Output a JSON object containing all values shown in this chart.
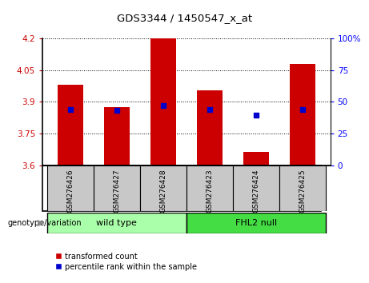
{
  "title": "GDS3344 / 1450547_x_at",
  "samples": [
    "GSM276426",
    "GSM276427",
    "GSM276428",
    "GSM276423",
    "GSM276424",
    "GSM276425"
  ],
  "bar_values": [
    3.98,
    3.875,
    4.2,
    3.955,
    3.665,
    4.08
  ],
  "percentile_values": [
    3.865,
    3.862,
    3.882,
    3.865,
    3.836,
    3.865
  ],
  "ylim_left": [
    3.6,
    4.2
  ],
  "ylim_right": [
    0,
    100
  ],
  "yticks_left": [
    3.6,
    3.75,
    3.9,
    4.05,
    4.2
  ],
  "ytick_labels_left": [
    "3.6",
    "3.75",
    "3.9",
    "4.05",
    "4.2"
  ],
  "yticks_right": [
    0,
    25,
    50,
    75,
    100
  ],
  "ytick_labels_right": [
    "0",
    "25",
    "50",
    "75",
    "100%"
  ],
  "bar_color": "#CC0000",
  "percentile_color": "#0000CC",
  "bar_width": 0.55,
  "bg_color_plot": "#FFFFFF",
  "bg_color_sample": "#C8C8C8",
  "wild_type_green": "#AAFFAA",
  "fhl2_green": "#44DD44",
  "legend_tc": "transformed count",
  "legend_pr": "percentile rank within the sample",
  "genotype_label": "genotype/variation"
}
